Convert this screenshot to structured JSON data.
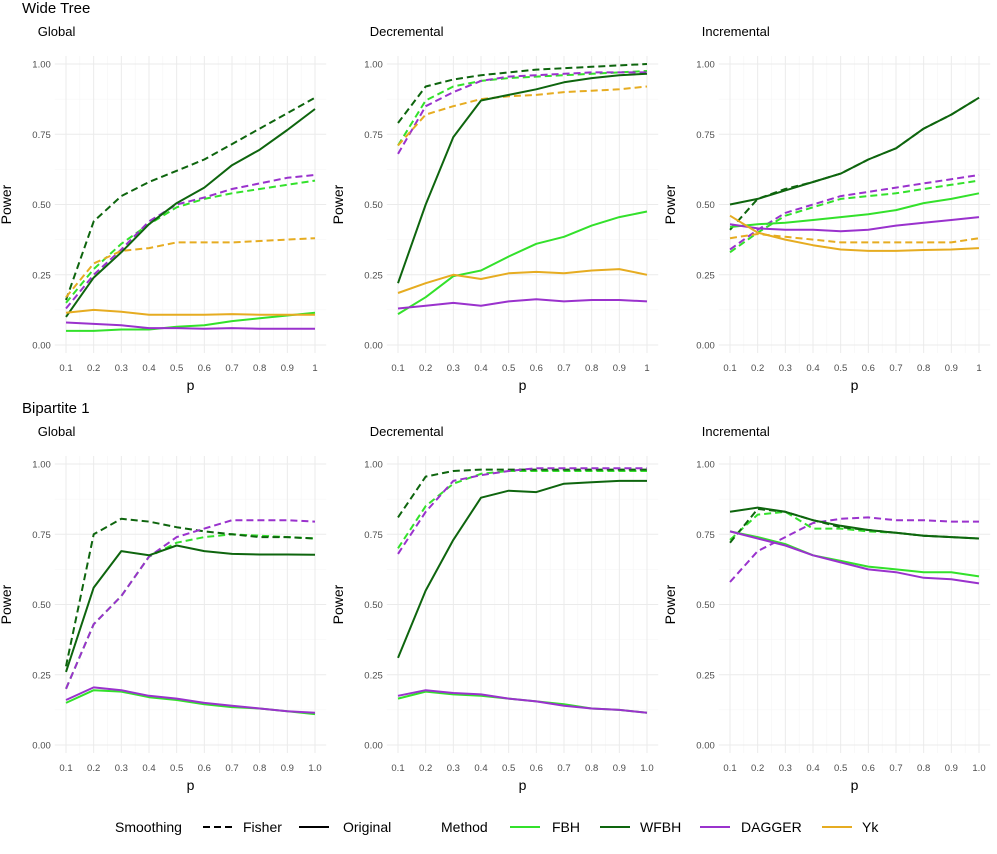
{
  "legend": {
    "smoothing_title": "Smoothing",
    "smoothing_items": [
      {
        "label": "Fisher",
        "linetype": "dashed"
      },
      {
        "label": "Original",
        "linetype": "solid"
      }
    ],
    "method_title": "Method",
    "method_items": [
      {
        "label": "FBH",
        "color": "#33e12b"
      },
      {
        "label": "WFBH",
        "color": "#0e650e"
      },
      {
        "label": "DAGGER",
        "color": "#9a32cd"
      },
      {
        "label": "Yk",
        "color": "#e6ac21"
      }
    ]
  },
  "colors": {
    "FBH": "#33e12b",
    "WFBH": "#0e650e",
    "DAGGER": "#9a32cd",
    "Yk": "#e6ac21"
  },
  "y_ticks": [
    "0.00",
    "0.25",
    "0.50",
    "0.75",
    "1.00"
  ],
  "chart_data": [
    {
      "type": "line",
      "row_title": "Wide Tree",
      "title": "Global",
      "xlabel": "p",
      "ylabel": "Power",
      "ylim": [
        0,
        1
      ],
      "grid": true,
      "x": [
        0.1,
        0.2,
        0.3,
        0.4,
        0.5,
        0.6,
        0.7,
        0.8,
        0.9,
        1.0
      ],
      "x_tick_labels": [
        "0.1",
        "0.2",
        "0.3",
        "0.4",
        "0.5",
        "0.6",
        "0.7",
        "0.8",
        "0.9",
        "1"
      ],
      "series": [
        {
          "method": "FBH",
          "smoothing": "Fisher",
          "values": [
            0.15,
            0.27,
            0.36,
            0.43,
            0.49,
            0.52,
            0.54,
            0.555,
            0.57,
            0.585
          ]
        },
        {
          "method": "FBH",
          "smoothing": "Original",
          "values": [
            0.05,
            0.05,
            0.055,
            0.055,
            0.065,
            0.07,
            0.085,
            0.095,
            0.105,
            0.115
          ]
        },
        {
          "method": "WFBH",
          "smoothing": "Fisher",
          "values": [
            0.16,
            0.44,
            0.53,
            0.58,
            0.62,
            0.66,
            0.715,
            0.77,
            0.825,
            0.88
          ]
        },
        {
          "method": "WFBH",
          "smoothing": "Original",
          "values": [
            0.1,
            0.24,
            0.33,
            0.43,
            0.505,
            0.56,
            0.64,
            0.695,
            0.765,
            0.84
          ]
        },
        {
          "method": "DAGGER",
          "smoothing": "Fisher",
          "values": [
            0.13,
            0.25,
            0.34,
            0.44,
            0.5,
            0.525,
            0.555,
            0.575,
            0.595,
            0.605
          ]
        },
        {
          "method": "DAGGER",
          "smoothing": "Original",
          "values": [
            0.08,
            0.075,
            0.07,
            0.06,
            0.06,
            0.058,
            0.06,
            0.058,
            0.058,
            0.058
          ]
        },
        {
          "method": "Yk",
          "smoothing": "Fisher",
          "values": [
            0.17,
            0.29,
            0.335,
            0.345,
            0.365,
            0.365,
            0.365,
            0.37,
            0.375,
            0.38
          ]
        },
        {
          "method": "Yk",
          "smoothing": "Original",
          "values": [
            0.115,
            0.125,
            0.118,
            0.108,
            0.108,
            0.108,
            0.11,
            0.108,
            0.108,
            0.108
          ]
        }
      ]
    },
    {
      "type": "line",
      "title": "Decremental",
      "xlabel": "p",
      "ylabel": "Power",
      "ylim": [
        0,
        1
      ],
      "grid": true,
      "x": [
        0.1,
        0.2,
        0.3,
        0.4,
        0.5,
        0.6,
        0.7,
        0.8,
        0.9,
        1.0
      ],
      "x_tick_labels": [
        "0.1",
        "0.2",
        "0.3",
        "0.4",
        "0.5",
        "0.6",
        "0.7",
        "0.8",
        "0.9",
        "1"
      ],
      "series": [
        {
          "method": "FBH",
          "smoothing": "Fisher",
          "values": [
            0.71,
            0.87,
            0.92,
            0.94,
            0.95,
            0.955,
            0.96,
            0.965,
            0.97,
            0.975
          ]
        },
        {
          "method": "FBH",
          "smoothing": "Original",
          "values": [
            0.11,
            0.17,
            0.245,
            0.265,
            0.315,
            0.36,
            0.385,
            0.425,
            0.455,
            0.475
          ]
        },
        {
          "method": "WFBH",
          "smoothing": "Fisher",
          "values": [
            0.79,
            0.92,
            0.945,
            0.96,
            0.97,
            0.98,
            0.985,
            0.99,
            0.995,
            1.0
          ]
        },
        {
          "method": "WFBH",
          "smoothing": "Original",
          "values": [
            0.22,
            0.5,
            0.74,
            0.87,
            0.89,
            0.91,
            0.935,
            0.95,
            0.96,
            0.965
          ]
        },
        {
          "method": "DAGGER",
          "smoothing": "Fisher",
          "values": [
            0.68,
            0.85,
            0.9,
            0.94,
            0.955,
            0.96,
            0.965,
            0.97,
            0.97,
            0.97
          ]
        },
        {
          "method": "DAGGER",
          "smoothing": "Original",
          "values": [
            0.13,
            0.14,
            0.15,
            0.14,
            0.155,
            0.163,
            0.155,
            0.16,
            0.16,
            0.155
          ]
        },
        {
          "method": "Yk",
          "smoothing": "Fisher",
          "values": [
            0.71,
            0.82,
            0.85,
            0.875,
            0.885,
            0.89,
            0.9,
            0.905,
            0.91,
            0.92
          ]
        },
        {
          "method": "Yk",
          "smoothing": "Original",
          "values": [
            0.185,
            0.22,
            0.25,
            0.235,
            0.255,
            0.26,
            0.255,
            0.265,
            0.27,
            0.25
          ]
        }
      ]
    },
    {
      "type": "line",
      "title": "Incremental",
      "xlabel": "p",
      "ylabel": "Power",
      "ylim": [
        0,
        1
      ],
      "grid": true,
      "x": [
        0.1,
        0.2,
        0.3,
        0.4,
        0.5,
        0.6,
        0.7,
        0.8,
        0.9,
        1.0
      ],
      "x_tick_labels": [
        "0.1",
        "0.2",
        "0.3",
        "0.4",
        "0.5",
        "0.6",
        "0.7",
        "0.8",
        "0.9",
        "1"
      ],
      "series": [
        {
          "method": "FBH",
          "smoothing": "Fisher",
          "values": [
            0.33,
            0.4,
            0.46,
            0.49,
            0.52,
            0.53,
            0.54,
            0.555,
            0.57,
            0.585
          ]
        },
        {
          "method": "FBH",
          "smoothing": "Original",
          "values": [
            0.42,
            0.43,
            0.435,
            0.445,
            0.455,
            0.465,
            0.48,
            0.505,
            0.52,
            0.54
          ]
        },
        {
          "method": "WFBH",
          "smoothing": "Fisher",
          "values": [
            0.41,
            0.52,
            0.555,
            0.58,
            0.61,
            0.66,
            0.7,
            0.77,
            0.82,
            0.88
          ]
        },
        {
          "method": "WFBH",
          "smoothing": "Original",
          "values": [
            0.5,
            0.52,
            0.55,
            0.58,
            0.61,
            0.66,
            0.7,
            0.77,
            0.82,
            0.88
          ]
        },
        {
          "method": "DAGGER",
          "smoothing": "Fisher",
          "values": [
            0.34,
            0.41,
            0.47,
            0.5,
            0.53,
            0.545,
            0.56,
            0.575,
            0.59,
            0.605
          ]
        },
        {
          "method": "DAGGER",
          "smoothing": "Original",
          "values": [
            0.43,
            0.415,
            0.41,
            0.41,
            0.405,
            0.41,
            0.425,
            0.435,
            0.445,
            0.455
          ]
        },
        {
          "method": "Yk",
          "smoothing": "Fisher",
          "values": [
            0.38,
            0.395,
            0.385,
            0.375,
            0.365,
            0.365,
            0.365,
            0.365,
            0.365,
            0.38
          ]
        },
        {
          "method": "Yk",
          "smoothing": "Original",
          "values": [
            0.46,
            0.4,
            0.375,
            0.355,
            0.34,
            0.335,
            0.335,
            0.338,
            0.34,
            0.345
          ]
        }
      ]
    },
    {
      "type": "line",
      "row_title": "Bipartite 1",
      "title": "Global",
      "xlabel": "p",
      "ylabel": "Power",
      "ylim": [
        0,
        1
      ],
      "grid": true,
      "x": [
        0.1,
        0.2,
        0.3,
        0.4,
        0.5,
        0.6,
        0.7,
        0.8,
        0.9,
        1.0
      ],
      "x_tick_labels": [
        "0.1",
        "0.2",
        "0.3",
        "0.4",
        "0.5",
        "0.6",
        "0.7",
        "0.8",
        "0.9",
        "1.0"
      ],
      "series": [
        {
          "method": "FBH",
          "smoothing": "Fisher",
          "values": [
            0.2,
            0.43,
            0.53,
            0.67,
            0.72,
            0.74,
            0.75,
            0.745,
            0.74,
            0.735
          ]
        },
        {
          "method": "FBH",
          "smoothing": "Original",
          "values": [
            0.15,
            0.195,
            0.19,
            0.17,
            0.16,
            0.145,
            0.135,
            0.13,
            0.12,
            0.11
          ]
        },
        {
          "method": "WFBH",
          "smoothing": "Fisher",
          "values": [
            0.28,
            0.75,
            0.805,
            0.795,
            0.775,
            0.76,
            0.75,
            0.74,
            0.74,
            0.735
          ]
        },
        {
          "method": "WFBH",
          "smoothing": "Original",
          "values": [
            0.26,
            0.56,
            0.69,
            0.675,
            0.71,
            0.69,
            0.68,
            0.678,
            0.678,
            0.677
          ]
        },
        {
          "method": "DAGGER",
          "smoothing": "Fisher",
          "values": [
            0.2,
            0.43,
            0.53,
            0.67,
            0.74,
            0.77,
            0.8,
            0.8,
            0.8,
            0.795
          ]
        },
        {
          "method": "DAGGER",
          "smoothing": "Original",
          "values": [
            0.16,
            0.205,
            0.195,
            0.175,
            0.165,
            0.15,
            0.14,
            0.13,
            0.12,
            0.115
          ]
        }
      ]
    },
    {
      "type": "line",
      "title": "Decremental",
      "xlabel": "p",
      "ylabel": "Power",
      "ylim": [
        0,
        1
      ],
      "grid": true,
      "x": [
        0.1,
        0.2,
        0.3,
        0.4,
        0.5,
        0.6,
        0.7,
        0.8,
        0.9,
        1.0
      ],
      "x_tick_labels": [
        "0.1",
        "0.2",
        "0.3",
        "0.4",
        "0.5",
        "0.6",
        "0.7",
        "0.8",
        "0.9",
        "1.0"
      ],
      "series": [
        {
          "method": "FBH",
          "smoothing": "Fisher",
          "values": [
            0.7,
            0.85,
            0.93,
            0.965,
            0.975,
            0.975,
            0.975,
            0.975,
            0.975,
            0.975
          ]
        },
        {
          "method": "FBH",
          "smoothing": "Original",
          "values": [
            0.165,
            0.19,
            0.18,
            0.175,
            0.165,
            0.155,
            0.145,
            0.13,
            0.125,
            0.115
          ]
        },
        {
          "method": "WFBH",
          "smoothing": "Fisher",
          "values": [
            0.81,
            0.955,
            0.975,
            0.98,
            0.98,
            0.98,
            0.98,
            0.98,
            0.98,
            0.98
          ]
        },
        {
          "method": "WFBH",
          "smoothing": "Original",
          "values": [
            0.31,
            0.55,
            0.73,
            0.88,
            0.905,
            0.9,
            0.93,
            0.935,
            0.94,
            0.94
          ]
        },
        {
          "method": "DAGGER",
          "smoothing": "Fisher",
          "values": [
            0.68,
            0.83,
            0.94,
            0.96,
            0.975,
            0.985,
            0.985,
            0.985,
            0.985,
            0.985
          ]
        },
        {
          "method": "DAGGER",
          "smoothing": "Original",
          "values": [
            0.175,
            0.195,
            0.185,
            0.18,
            0.165,
            0.155,
            0.14,
            0.13,
            0.125,
            0.115
          ]
        }
      ]
    },
    {
      "type": "line",
      "title": "Incremental",
      "xlabel": "p",
      "ylabel": "Power",
      "ylim": [
        0,
        1
      ],
      "grid": true,
      "x": [
        0.1,
        0.2,
        0.3,
        0.4,
        0.5,
        0.6,
        0.7,
        0.8,
        0.9,
        1.0
      ],
      "x_tick_labels": [
        "0.1",
        "0.2",
        "0.3",
        "0.4",
        "0.5",
        "0.6",
        "0.7",
        "0.8",
        "0.9",
        "1.0"
      ],
      "series": [
        {
          "method": "FBH",
          "smoothing": "Fisher",
          "values": [
            0.73,
            0.82,
            0.83,
            0.77,
            0.77,
            0.76,
            0.755,
            0.745,
            0.74,
            0.735
          ]
        },
        {
          "method": "FBH",
          "smoothing": "Original",
          "values": [
            0.76,
            0.74,
            0.715,
            0.675,
            0.655,
            0.635,
            0.625,
            0.615,
            0.615,
            0.6
          ]
        },
        {
          "method": "WFBH",
          "smoothing": "Fisher",
          "values": [
            0.72,
            0.84,
            0.83,
            0.8,
            0.775,
            0.765,
            0.755,
            0.745,
            0.74,
            0.735
          ]
        },
        {
          "method": "WFBH",
          "smoothing": "Original",
          "values": [
            0.83,
            0.845,
            0.83,
            0.8,
            0.78,
            0.765,
            0.755,
            0.745,
            0.74,
            0.735
          ]
        },
        {
          "method": "DAGGER",
          "smoothing": "Fisher",
          "values": [
            0.58,
            0.69,
            0.74,
            0.79,
            0.805,
            0.81,
            0.8,
            0.8,
            0.795,
            0.795
          ]
        },
        {
          "method": "DAGGER",
          "smoothing": "Original",
          "values": [
            0.76,
            0.735,
            0.71,
            0.675,
            0.65,
            0.625,
            0.615,
            0.595,
            0.59,
            0.575
          ]
        }
      ]
    }
  ]
}
